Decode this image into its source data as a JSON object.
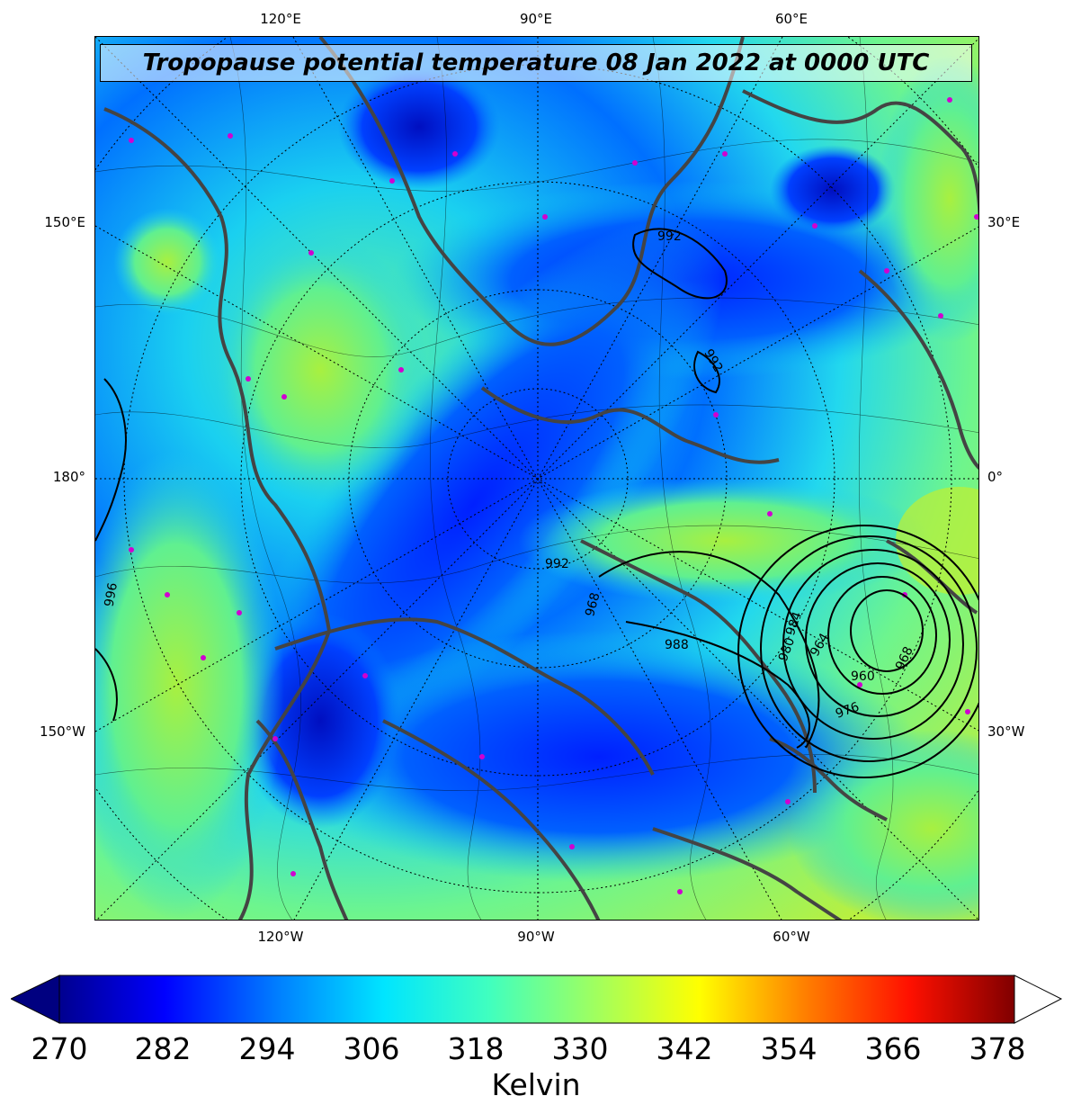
{
  "title": "Tropopause potential temperature 08 Jan 2022 at 0000 UTC",
  "longitude_labels_top": [
    "120°E",
    "90°E",
    "60°E"
  ],
  "longitude_labels_bottom": [
    "120°W",
    "90°W",
    "60°W"
  ],
  "latitude_labels_left": [
    "150°E",
    "180°",
    "150°W"
  ],
  "latitude_labels_right": [
    "30°E",
    "0°",
    "30°W"
  ],
  "contour_labels": [
    "992",
    "992",
    "992",
    "988",
    "984",
    "980",
    "976",
    "968",
    "968",
    "964",
    "960",
    "996"
  ],
  "colorbar": {
    "ticks": [
      "270",
      "282",
      "294",
      "306",
      "318",
      "330",
      "342",
      "354",
      "366",
      "378"
    ],
    "label": "Kelvin",
    "colors": [
      "#00008f",
      "#0000ff",
      "#0080ff",
      "#00e5ff",
      "#40ffbf",
      "#9fff60",
      "#ffff00",
      "#ff8000",
      "#ff1000",
      "#800000"
    ]
  }
}
